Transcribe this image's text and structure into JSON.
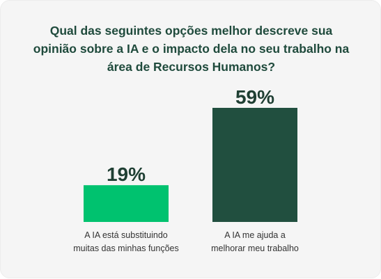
{
  "chart_data": {
    "type": "bar",
    "title": "Qual das seguintes opções melhor descreve sua opinião sobre a IA e o impacto dela no seu trabalho na área de Recursos Humanos?",
    "categories": [
      "A IA está substituindo muitas das minhas funções",
      "A IA me ajuda a melhorar meu trabalho"
    ],
    "category_lines": [
      [
        "A IA está substituindo",
        "muitas das minhas funções"
      ],
      [
        "A IA me ajuda a",
        "melhorar meu trabalho"
      ]
    ],
    "values": [
      19,
      59
    ],
    "data_labels": [
      "19%",
      "59%"
    ],
    "colors": [
      "#00c26f",
      "#214f3f"
    ],
    "ylim": [
      0,
      59
    ],
    "grid": false,
    "legend": "none",
    "xlabel": "",
    "ylabel": ""
  }
}
